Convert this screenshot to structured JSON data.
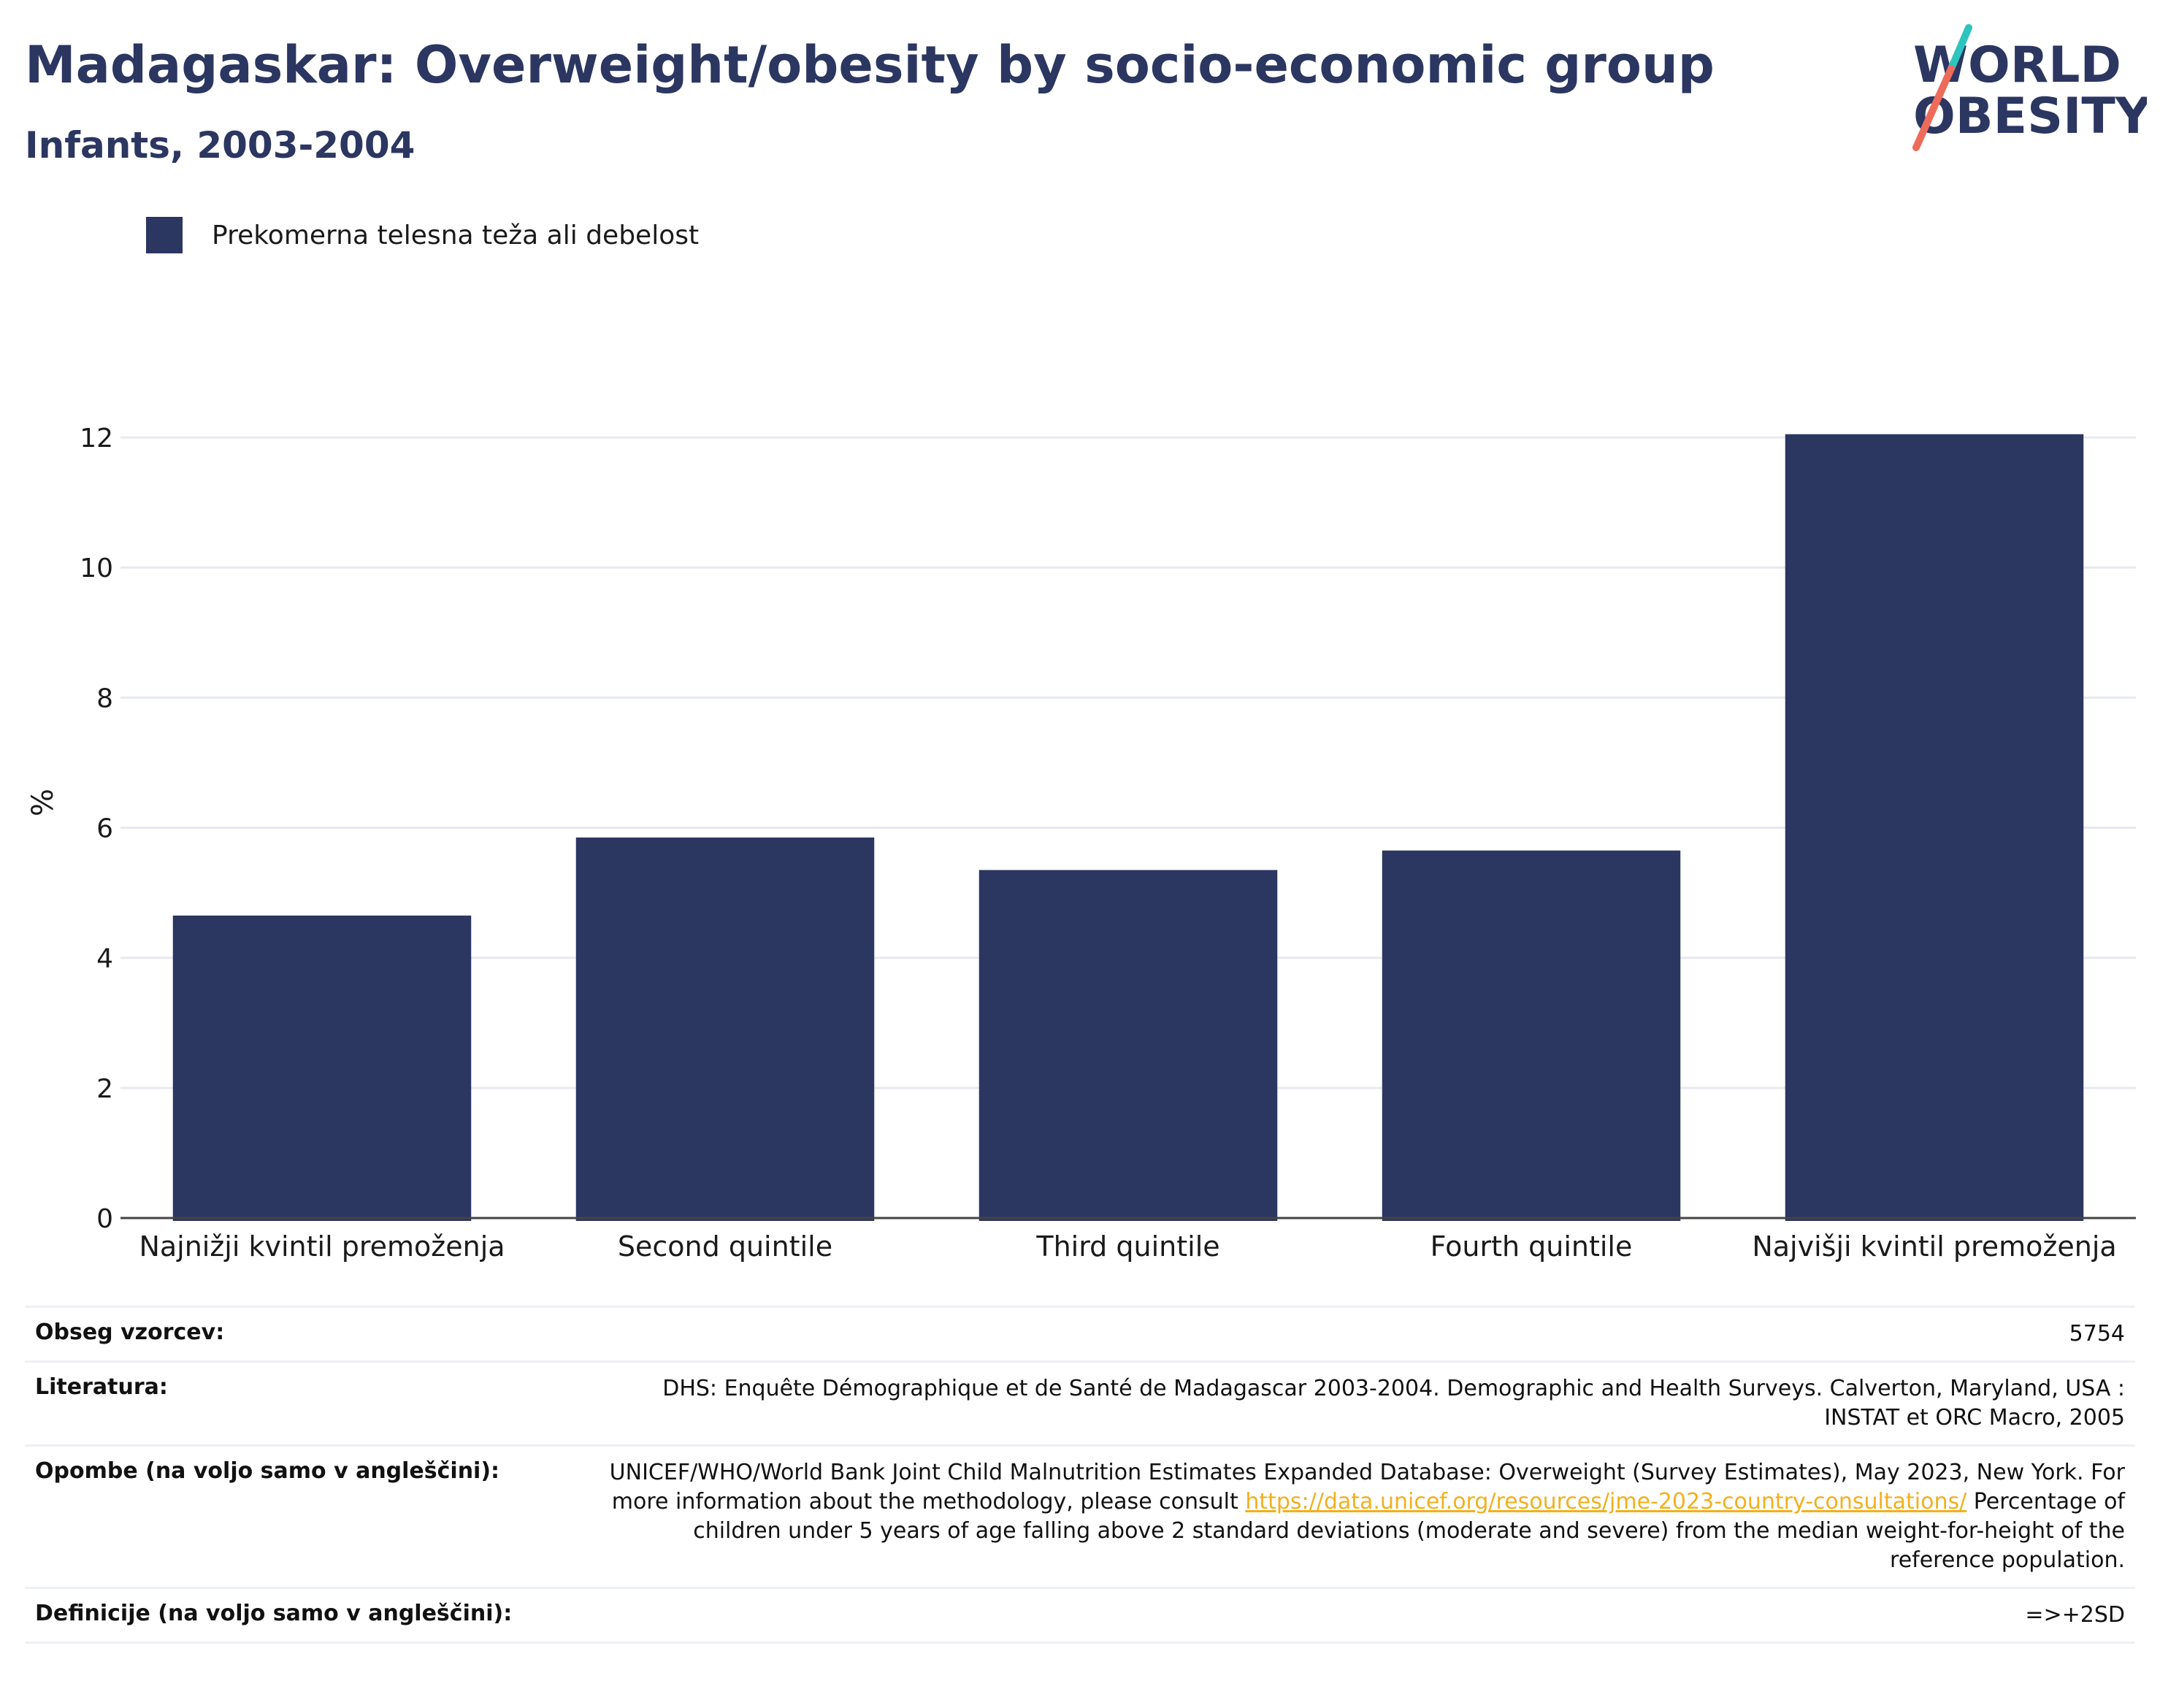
{
  "header": {
    "title": "Madagaskar: Overweight/obesity by socio-economic group",
    "subtitle": "Infants, 2003-2004"
  },
  "logo": {
    "line1": "WORLD",
    "line2": "OBESITY",
    "accent_teal": "#2ec4c0",
    "accent_red": "#ee6b5a"
  },
  "legend": {
    "label": "Prekomerna telesna teža ali debelost",
    "color": "#2b3661"
  },
  "chart_data": {
    "type": "bar",
    "categories": [
      "Najnižji kvintil premoženja",
      "Second quintile",
      "Third quintile",
      "Fourth quintile",
      "Najvišji kvintil premoženja"
    ],
    "series": [
      {
        "name": "Prekomerna telesna teža ali debelost",
        "values": [
          4.65,
          5.85,
          5.35,
          5.65,
          12.05
        ],
        "color": "#2b3661"
      }
    ],
    "ylabel": "%",
    "ylim": [
      0,
      13
    ],
    "yticks": [
      0,
      2,
      4,
      6,
      8,
      10,
      12
    ],
    "grid": true,
    "legend_position": "top-left"
  },
  "info": {
    "sample_label": "Obseg vzorcev:",
    "sample_value": "5754",
    "literature_label": "Literatura:",
    "literature_value": "DHS: Enquête Démographique et de Santé de Madagascar 2003-2004. Demographic and Health Surveys. Calverton, Maryland, USA : INSTAT et ORC Macro, 2005",
    "notes_label": "Opombe (na voljo samo v angleščini):",
    "notes_text_1": "UNICEF/WHO/World Bank Joint Child Malnutrition Estimates Expanded Database: Overweight (Survey Estimates), May 2023, New York. For more information about the methodology, please consult ",
    "notes_link": "https://data.unicef.org/resources/jme-2023-country-consultations/",
    "notes_text_2": " Percentage of children under 5 years of age falling above 2 standard deviations (moderate and severe) from the median weight-for-height of the reference population.",
    "definitions_label": "Definicije (na voljo samo v angleščini):",
    "definitions_value": "=>+2SD"
  }
}
